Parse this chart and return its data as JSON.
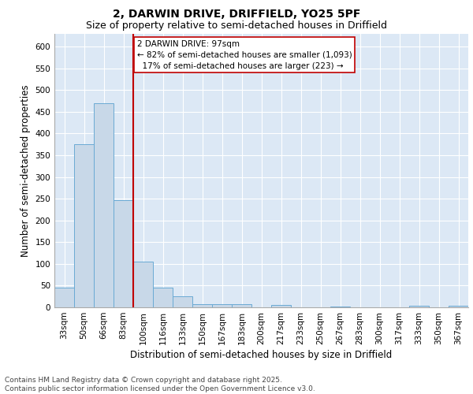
{
  "title_line1": "2, DARWIN DRIVE, DRIFFIELD, YO25 5PF",
  "title_line2": "Size of property relative to semi-detached houses in Driffield",
  "xlabel": "Distribution of semi-detached houses by size in Driffield",
  "ylabel": "Number of semi-detached properties",
  "categories": [
    "33sqm",
    "50sqm",
    "66sqm",
    "83sqm",
    "100sqm",
    "116sqm",
    "133sqm",
    "150sqm",
    "167sqm",
    "183sqm",
    "200sqm",
    "217sqm",
    "233sqm",
    "250sqm",
    "267sqm",
    "283sqm",
    "300sqm",
    "317sqm",
    "333sqm",
    "350sqm",
    "367sqm"
  ],
  "values": [
    45,
    375,
    470,
    247,
    105,
    45,
    25,
    8,
    8,
    7,
    0,
    5,
    0,
    0,
    2,
    0,
    0,
    0,
    3,
    0,
    3
  ],
  "bar_color": "#c8d8e8",
  "bar_edge_color": "#6aaad4",
  "vline_color": "#c00000",
  "vline_index": 3.5,
  "annotation_text": "2 DARWIN DRIVE: 97sqm\n← 82% of semi-detached houses are smaller (1,093)\n  17% of semi-detached houses are larger (223) →",
  "annotation_box_color": "#c00000",
  "ylim": [
    0,
    630
  ],
  "yticks": [
    0,
    50,
    100,
    150,
    200,
    250,
    300,
    350,
    400,
    450,
    500,
    550,
    600
  ],
  "footer_text": "Contains HM Land Registry data © Crown copyright and database right 2025.\nContains public sector information licensed under the Open Government Licence v3.0.",
  "bg_color": "#dce8f5",
  "title_fontsize": 10,
  "subtitle_fontsize": 9,
  "axis_label_fontsize": 8.5,
  "tick_fontsize": 7.5,
  "annotation_fontsize": 7.5,
  "footer_fontsize": 6.5
}
